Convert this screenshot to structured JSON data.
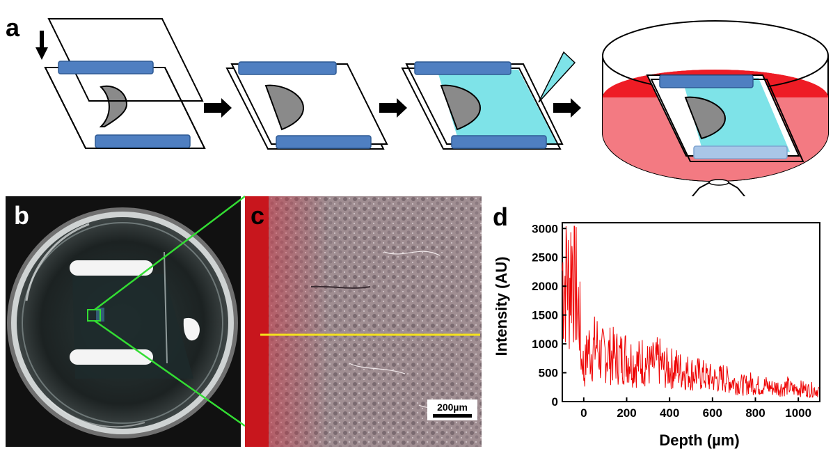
{
  "panel_labels": {
    "a": "a",
    "b": "b",
    "c": "c",
    "d": "d"
  },
  "scale_bar": {
    "label": "200µm"
  },
  "colors": {
    "slide_blue": "#4f7fc1",
    "slide_blue_dark": "#2e5a94",
    "cyan_gel": "#7ee3e8",
    "red_medium": "#ee1c25",
    "pink_medium": "#f37a82",
    "sample_gray": "#8a8a8a",
    "zoom_green": "#33dd33",
    "profile_line": "#f5e31c",
    "plot_line": "#ee0000"
  },
  "chart_data": {
    "type": "line",
    "xlabel": "Depth (µm)",
    "ylabel": "Intensity (AU)",
    "xlim": [
      -100,
      1100
    ],
    "ylim": [
      0,
      3100
    ],
    "xticks": [
      0,
      200,
      400,
      600,
      800,
      1000
    ],
    "yticks": [
      0,
      500,
      1000,
      1500,
      2000,
      2500,
      3000
    ],
    "grid": false,
    "series": [
      {
        "color": "#ee0000",
        "x": [
          -100,
          -90,
          -80,
          -70,
          -60,
          -50,
          -40,
          -30,
          -20,
          -15,
          -10,
          -5,
          0,
          10,
          20,
          40,
          60,
          80,
          100,
          125,
          150,
          175,
          200,
          225,
          250,
          275,
          300,
          325,
          350,
          375,
          400,
          425,
          450,
          475,
          500,
          525,
          550,
          575,
          600,
          625,
          650,
          675,
          700,
          725,
          750,
          775,
          800,
          825,
          850,
          875,
          900,
          925,
          950,
          975,
          1000,
          1025,
          1050,
          1075,
          1100
        ],
        "y": [
          2300,
          2050,
          2500,
          1900,
          2400,
          2600,
          2100,
          1700,
          1550,
          1000,
          700,
          850,
          450,
          700,
          950,
          850,
          1000,
          750,
          850,
          800,
          780,
          760,
          800,
          700,
          650,
          720,
          620,
          640,
          700,
          580,
          560,
          600,
          540,
          520,
          500,
          480,
          460,
          420,
          400,
          380,
          420,
          360,
          340,
          300,
          280,
          320,
          300,
          260,
          280,
          240,
          250,
          230,
          270,
          210,
          230,
          220,
          200,
          210,
          190
        ]
      }
    ]
  }
}
